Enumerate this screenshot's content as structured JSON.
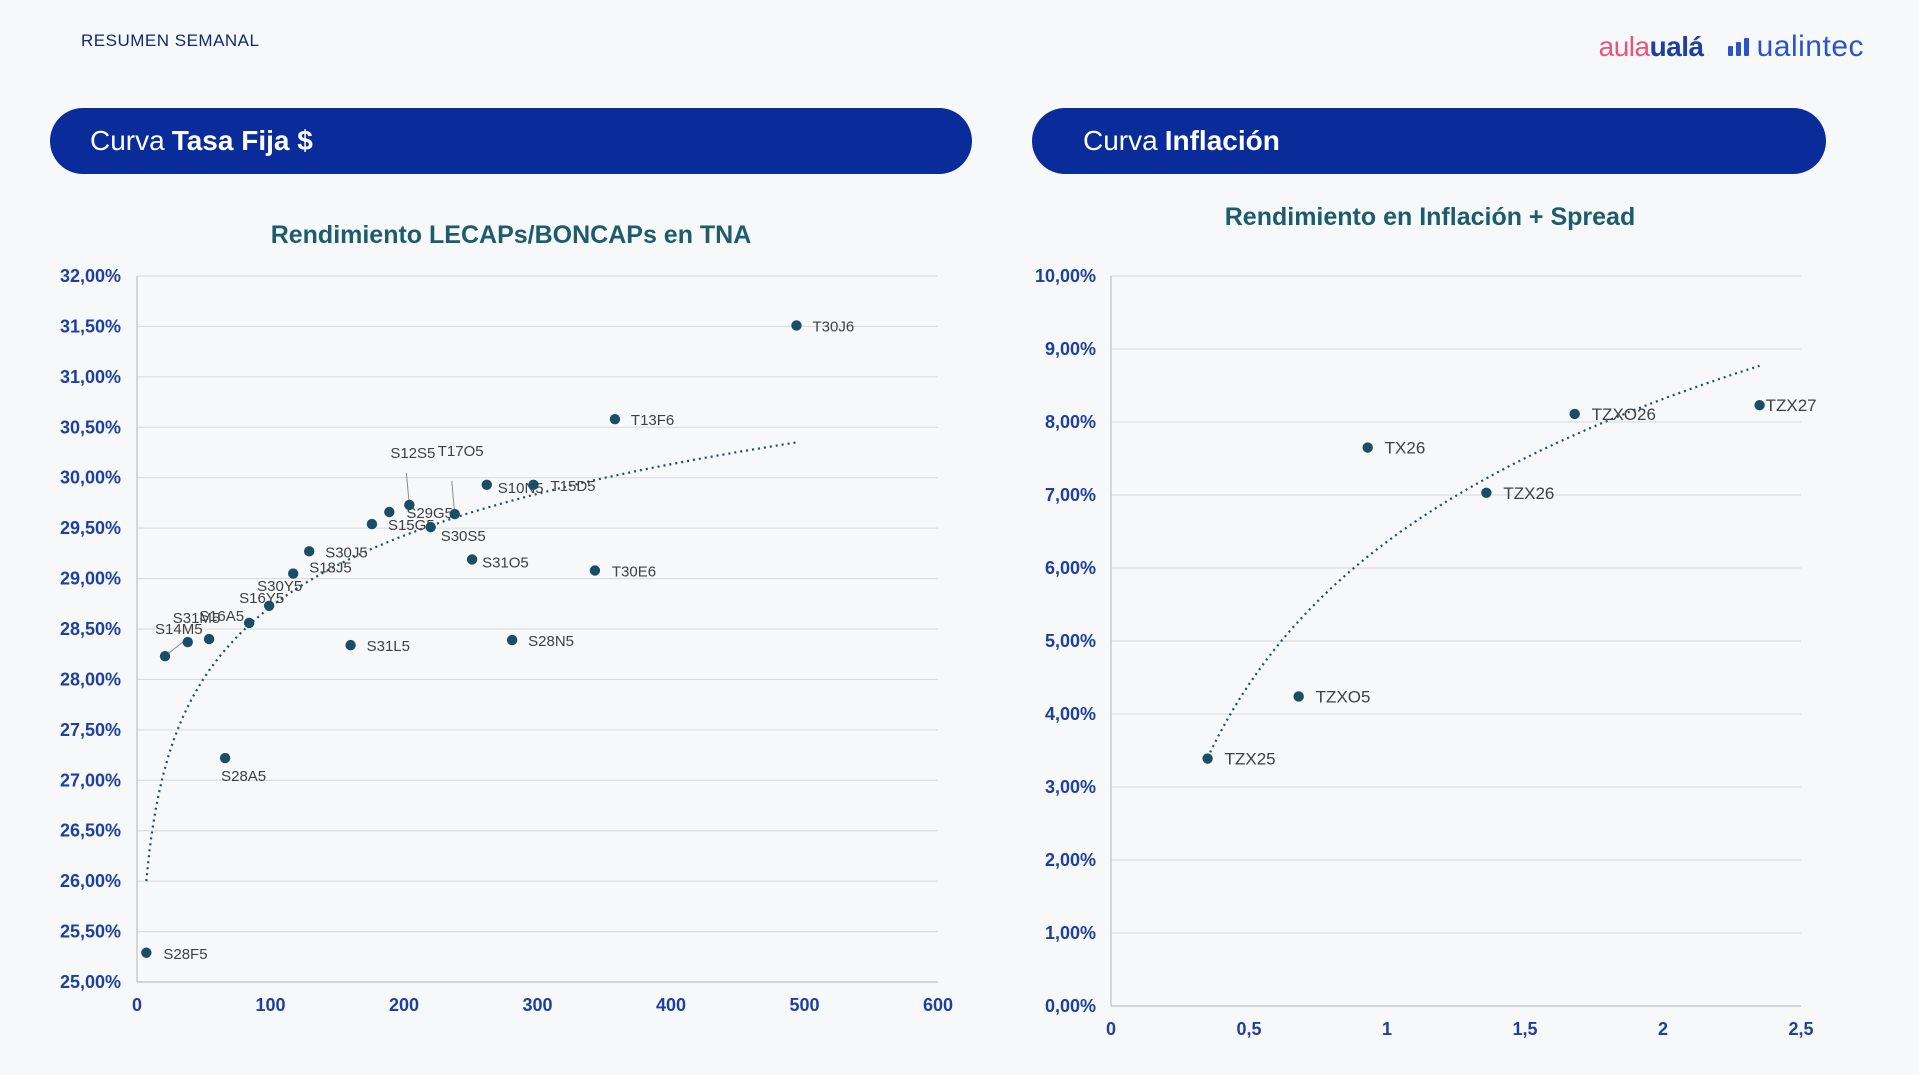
{
  "header": {
    "section_label": "RESUMEN SEMANAL",
    "logo_aula_1": "aula",
    "logo_aula_2": "ualá",
    "logo_ualintec": "ualintec"
  },
  "left_panel": {
    "pill_normal": "Curva",
    "pill_bold": "Tasa Fija $"
  },
  "right_panel": {
    "pill_normal": "Curva",
    "pill_bold": "Inflación"
  },
  "colors": {
    "pill_bg": "#0a2c9a",
    "marker": "#1a4e66",
    "title": "#1c5c6c",
    "tick": "#1d3f9e"
  },
  "chart_data": [
    {
      "type": "scatter",
      "title": "Rendimiento LECAPs/BONCAPs en TNA",
      "xlabel": "",
      "ylabel": "",
      "xlim": [
        0,
        600
      ],
      "ylim": [
        25.0,
        32.0
      ],
      "xticks": [
        0,
        100,
        200,
        300,
        400,
        500,
        600
      ],
      "xtick_labels": [
        "0",
        "100",
        "200",
        "300",
        "400",
        "500",
        "600"
      ],
      "yticks": [
        25.0,
        25.5,
        26.0,
        26.5,
        27.0,
        27.5,
        28.0,
        28.5,
        29.0,
        29.5,
        30.0,
        30.5,
        31.0,
        31.5,
        32.0
      ],
      "ytick_labels": [
        "25,00%",
        "25,50%",
        "26,00%",
        "26,50%",
        "27,00%",
        "27,50%",
        "28,00%",
        "28,50%",
        "29,00%",
        "29,50%",
        "30,00%",
        "30,50%",
        "31,00%",
        "31,50%",
        "32,00%"
      ],
      "grid": true,
      "points": [
        {
          "label": "S28F5",
          "x": 7,
          "y": 25.29
        },
        {
          "label": "S14M5",
          "x": 21,
          "y": 28.23
        },
        {
          "label": "S31M5",
          "x": 38,
          "y": 28.37
        },
        {
          "label": "S16A5",
          "x": 54,
          "y": 28.4
        },
        {
          "label": "S28A5",
          "x": 66,
          "y": 27.22
        },
        {
          "label": "S16Y5",
          "x": 84,
          "y": 28.56
        },
        {
          "label": "S30Y5",
          "x": 99,
          "y": 28.73
        },
        {
          "label": "S18J5",
          "x": 117,
          "y": 29.05
        },
        {
          "label": "S30J5",
          "x": 129,
          "y": 29.27
        },
        {
          "label": "S31L5",
          "x": 160,
          "y": 28.34
        },
        {
          "label": "S15G5",
          "x": 176,
          "y": 29.54
        },
        {
          "label": "S29G5",
          "x": 189,
          "y": 29.66
        },
        {
          "label": "S12S5",
          "x": 204,
          "y": 29.73
        },
        {
          "label": "S30S5",
          "x": 220,
          "y": 29.51
        },
        {
          "label": "T17O5",
          "x": 238,
          "y": 29.64
        },
        {
          "label": "S31O5",
          "x": 251,
          "y": 29.19
        },
        {
          "label": "S10N5",
          "x": 262,
          "y": 29.93
        },
        {
          "label": "S28N5",
          "x": 281,
          "y": 28.39
        },
        {
          "label": "T15D5",
          "x": 297,
          "y": 29.93
        },
        {
          "label": "T30E6",
          "x": 343,
          "y": 29.08
        },
        {
          "label": "T13F6",
          "x": 358,
          "y": 30.58
        },
        {
          "label": "T30J6",
          "x": 494,
          "y": 31.51
        }
      ],
      "trendline": {
        "type": "logarithmic",
        "x_range": [
          7,
          494
        ],
        "y_at_start": 26.0,
        "y_at_end": 30.35
      }
    },
    {
      "type": "scatter",
      "title": "Rendimiento en Inflación + Spread",
      "xlabel": "",
      "ylabel": "",
      "xlim": [
        0,
        2.5
      ],
      "ylim": [
        0,
        10
      ],
      "xticks": [
        0,
        0.5,
        1,
        1.5,
        2,
        2.5
      ],
      "xtick_labels": [
        "0",
        "0,5",
        "1",
        "1,5",
        "2",
        "2,5"
      ],
      "yticks": [
        0,
        1,
        2,
        3,
        4,
        5,
        6,
        7,
        8,
        9,
        10
      ],
      "ytick_labels": [
        "0,00%",
        "1,00%",
        "2,00%",
        "3,00%",
        "4,00%",
        "5,00%",
        "6,00%",
        "7,00%",
        "8,00%",
        "9,00%",
        "10,00%"
      ],
      "grid": true,
      "points": [
        {
          "label": "TZX25",
          "x": 0.35,
          "y": 3.39
        },
        {
          "label": "TZXO5",
          "x": 0.68,
          "y": 4.24
        },
        {
          "label": "TX26",
          "x": 0.93,
          "y": 7.65
        },
        {
          "label": "TZX26",
          "x": 1.36,
          "y": 7.03
        },
        {
          "label": "TZXO26",
          "x": 1.68,
          "y": 8.11
        },
        {
          "label": "TZX27",
          "x": 2.35,
          "y": 8.23
        }
      ],
      "trendline": {
        "type": "logarithmic",
        "x_range": [
          0.35,
          2.35
        ],
        "y_at_start": 3.4,
        "y_at_end": 8.77
      }
    }
  ]
}
